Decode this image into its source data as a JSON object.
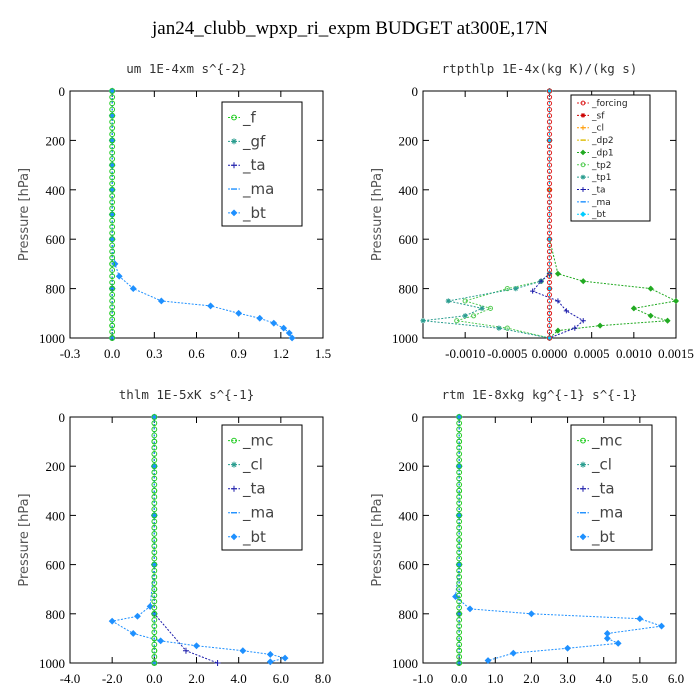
{
  "figure_title": "jan24_clubb_wpxp_ri_expm  BUDGET at300E,17N",
  "chart_data": [
    {
      "type": "line",
      "title": "um  1E-4xm s^{-2}",
      "ylabel": "Pressure [hPa]",
      "ylim": [
        1000,
        0
      ],
      "xlim": [
        -0.3,
        1.5
      ],
      "xticks": [
        "-0.3",
        "0.0",
        "0.3",
        "0.6",
        "0.9",
        "1.2",
        "1.5"
      ],
      "yticks": [
        "0",
        "200",
        "400",
        "600",
        "800",
        "1000"
      ],
      "legend": "top-right",
      "series": [
        {
          "name": "_f",
          "color": "#22cc22",
          "marker": "circle",
          "x": [
            0,
            0,
            0,
            0,
            0,
            0,
            0,
            0,
            0,
            0,
            0,
            0
          ],
          "y": [
            0,
            100,
            200,
            300,
            400,
            500,
            600,
            700,
            800,
            900,
            950,
            1000
          ]
        },
        {
          "name": "_gf",
          "color": "#2a9d8f",
          "marker": "star",
          "x": [
            0,
            0,
            0,
            0,
            0,
            0
          ],
          "y": [
            0,
            200,
            400,
            600,
            800,
            1000
          ]
        },
        {
          "name": "_ta",
          "color": "#1a1aaa",
          "marker": "plus",
          "x": [
            0,
            0,
            0,
            0,
            0,
            0
          ],
          "y": [
            0,
            200,
            400,
            600,
            800,
            1000
          ]
        },
        {
          "name": "_ma",
          "color": "#1e90ff",
          "marker": "dash",
          "x": [
            0,
            0,
            0,
            0,
            0,
            0
          ],
          "y": [
            0,
            200,
            400,
            600,
            800,
            1000
          ]
        },
        {
          "name": "_bt",
          "color": "#1e90ff",
          "marker": "diamond",
          "x": [
            0,
            0,
            0,
            0,
            0,
            0,
            0,
            0.02,
            0.05,
            0.15,
            0.35,
            0.7,
            0.9,
            1.05,
            1.15,
            1.22,
            1.26,
            1.28
          ],
          "y": [
            0,
            100,
            200,
            300,
            400,
            500,
            600,
            700,
            750,
            800,
            850,
            870,
            900,
            920,
            940,
            960,
            980,
            1000
          ]
        }
      ]
    },
    {
      "type": "line",
      "title": "rtpthlp  1E-4x(kg K)/(kg s)",
      "ylabel": "Pressure [hPa]",
      "ylim": [
        1000,
        0
      ],
      "xlim": [
        -0.0015,
        0.0015
      ],
      "xticks": [
        "-0.0010",
        "-0.0005",
        "0.0000",
        "0.0005",
        "0.0010",
        "0.0015"
      ],
      "yticks": [
        "0",
        "200",
        "400",
        "600",
        "800",
        "1000"
      ],
      "legend": "top-right",
      "series": [
        {
          "name": "_forcing",
          "color": "#dd2222",
          "marker": "circle",
          "x": [
            0,
            0,
            0,
            0,
            0,
            0,
            0
          ],
          "y": [
            0,
            200,
            400,
            600,
            800,
            900,
            1000
          ]
        },
        {
          "name": "_sf",
          "color": "#cc0000",
          "marker": "star",
          "x": [
            0,
            0,
            0,
            0,
            0,
            0
          ],
          "y": [
            0,
            200,
            400,
            600,
            800,
            1000
          ]
        },
        {
          "name": "_cl",
          "color": "#ff9900",
          "marker": "plus",
          "x": [
            0,
            0,
            0,
            0,
            0,
            0
          ],
          "y": [
            0,
            200,
            400,
            600,
            800,
            1000
          ]
        },
        {
          "name": "_dp2",
          "color": "#ddbb00",
          "marker": "dash",
          "x": [
            0,
            0,
            0,
            0,
            0,
            0
          ],
          "y": [
            0,
            200,
            400,
            600,
            800,
            1000
          ]
        },
        {
          "name": "_dp1",
          "color": "#22aa22",
          "marker": "diamond",
          "x": [
            0,
            0,
            0,
            0.0001,
            0.0004,
            0.0012,
            0.0015,
            0.001,
            0.0012,
            0.0014,
            0.0006,
            0.0001,
            0
          ],
          "y": [
            0,
            200,
            600,
            740,
            770,
            800,
            850,
            880,
            910,
            930,
            950,
            970,
            1000
          ]
        },
        {
          "name": "_tp2",
          "color": "#55cc55",
          "marker": "circle",
          "x": [
            0,
            0,
            0,
            -0.0001,
            -0.0005,
            -0.001,
            -0.0007,
            -0.0009,
            -0.0011,
            -0.0005,
            0
          ],
          "y": [
            0,
            200,
            740,
            770,
            800,
            850,
            880,
            910,
            930,
            960,
            1000
          ]
        },
        {
          "name": "_tp1",
          "color": "#2a9d8f",
          "marker": "star",
          "x": [
            0,
            0,
            0,
            -0.0001,
            -0.0004,
            -0.0012,
            -0.0008,
            -0.001,
            -0.0015,
            -0.0006,
            0
          ],
          "y": [
            0,
            200,
            740,
            770,
            800,
            850,
            880,
            910,
            930,
            960,
            1000
          ]
        },
        {
          "name": "_ta",
          "color": "#1a1aaa",
          "marker": "plus",
          "x": [
            0,
            0,
            0,
            -0.0001,
            -0.0002,
            0.0001,
            0.0002,
            0.0004,
            0.0003,
            0
          ],
          "y": [
            0,
            200,
            740,
            770,
            810,
            850,
            890,
            930,
            960,
            1000
          ]
        },
        {
          "name": "_ma",
          "color": "#1e90ff",
          "marker": "dash",
          "x": [
            0,
            0,
            0,
            0,
            0
          ],
          "y": [
            0,
            200,
            600,
            800,
            1000
          ]
        },
        {
          "name": "_bt",
          "color": "#00ccff",
          "marker": "diamond",
          "x": [
            0,
            0,
            0,
            0,
            0
          ],
          "y": [
            0,
            200,
            600,
            800,
            1000
          ]
        }
      ]
    },
    {
      "type": "line",
      "title": "thlm  1E-5xK s^{-1}",
      "ylabel": "Pressure [hPa]",
      "ylim": [
        1000,
        0
      ],
      "xlim": [
        -4.0,
        8.0
      ],
      "xticks": [
        "-4.0",
        "-2.0",
        "0.0",
        "2.0",
        "4.0",
        "6.0",
        "8.0"
      ],
      "yticks": [
        "0",
        "200",
        "400",
        "600",
        "800",
        "1000"
      ],
      "legend": "top-right",
      "series": [
        {
          "name": "_mc",
          "color": "#22cc22",
          "marker": "circle",
          "x": [
            0,
            0,
            0,
            0,
            0,
            0,
            0,
            0,
            0,
            0,
            0,
            0
          ],
          "y": [
            0,
            100,
            200,
            300,
            400,
            500,
            600,
            700,
            800,
            900,
            950,
            1000
          ]
        },
        {
          "name": "_cl",
          "color": "#2a9d8f",
          "marker": "star",
          "x": [
            0,
            0,
            0,
            0,
            0,
            0
          ],
          "y": [
            0,
            200,
            400,
            600,
            800,
            1000
          ]
        },
        {
          "name": "_ta",
          "color": "#1a1aaa",
          "marker": "plus",
          "x": [
            0,
            0,
            0,
            0,
            0,
            1.5,
            3.0
          ],
          "y": [
            0,
            200,
            400,
            600,
            800,
            950,
            1000
          ]
        },
        {
          "name": "_ma",
          "color": "#1e90ff",
          "marker": "dash",
          "x": [
            0,
            0,
            0,
            0,
            0,
            0
          ],
          "y": [
            0,
            200,
            400,
            600,
            800,
            1000
          ]
        },
        {
          "name": "_bt",
          "color": "#1e90ff",
          "marker": "diamond",
          "x": [
            0,
            0,
            0,
            0,
            -0.2,
            -0.8,
            -2.0,
            -1.0,
            0.3,
            2.0,
            4.2,
            5.5,
            6.2,
            5.5
          ],
          "y": [
            0,
            200,
            400,
            600,
            770,
            810,
            830,
            880,
            910,
            930,
            950,
            965,
            980,
            995
          ]
        }
      ]
    },
    {
      "type": "line",
      "title": "rtm  1E-8xkg kg^{-1} s^{-1}",
      "ylabel": "Pressure [hPa]",
      "ylim": [
        1000,
        0
      ],
      "xlim": [
        -1.0,
        6.0
      ],
      "xticks": [
        "-1.0",
        "0.0",
        "1.0",
        "2.0",
        "3.0",
        "4.0",
        "5.0",
        "6.0"
      ],
      "yticks": [
        "0",
        "200",
        "400",
        "600",
        "800",
        "1000"
      ],
      "legend": "top-right",
      "series": [
        {
          "name": "_mc",
          "color": "#22cc22",
          "marker": "circle",
          "x": [
            0,
            0,
            0,
            0,
            0,
            0,
            0,
            0,
            0,
            0,
            0,
            0
          ],
          "y": [
            0,
            100,
            200,
            300,
            400,
            500,
            600,
            700,
            800,
            900,
            950,
            1000
          ]
        },
        {
          "name": "_cl",
          "color": "#2a9d8f",
          "marker": "star",
          "x": [
            0,
            0,
            0,
            0,
            0,
            0
          ],
          "y": [
            0,
            200,
            400,
            600,
            800,
            1000
          ]
        },
        {
          "name": "_ta",
          "color": "#1a1aaa",
          "marker": "plus",
          "x": [
            0,
            0,
            0,
            0,
            0,
            0
          ],
          "y": [
            0,
            200,
            400,
            600,
            800,
            1000
          ]
        },
        {
          "name": "_ma",
          "color": "#1e90ff",
          "marker": "dash",
          "x": [
            0,
            0,
            0,
            0,
            0,
            0
          ],
          "y": [
            0,
            200,
            400,
            600,
            800,
            1000
          ]
        },
        {
          "name": "_bt",
          "color": "#1e90ff",
          "marker": "diamond",
          "x": [
            0,
            0,
            0,
            0,
            -0.1,
            0.3,
            2.0,
            5.0,
            5.6,
            4.1,
            4.1,
            4.4,
            3.0,
            1.5,
            0.8
          ],
          "y": [
            0,
            200,
            400,
            600,
            730,
            780,
            800,
            820,
            850,
            880,
            900,
            920,
            940,
            960,
            990
          ]
        }
      ]
    }
  ]
}
